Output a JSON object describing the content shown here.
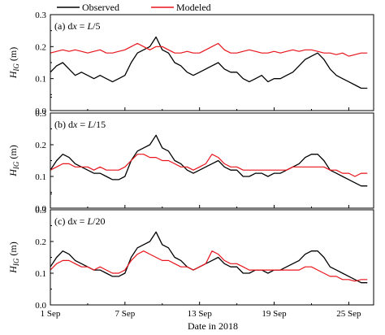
{
  "colors": {
    "observed": "#000000",
    "modeled": "#e8141b",
    "axis": "#000000",
    "background": "#ffffff"
  },
  "legend": {
    "placement": "top, outside plot area",
    "entries": [
      {
        "label": "Observed",
        "color": "#000000"
      },
      {
        "label": "Modeled",
        "color": "#e8141b"
      }
    ]
  },
  "xlabel": "Date in 2018",
  "x_tick_labels": [
    "1 Sep",
    "7 Sep",
    "13 Sep",
    "19 Sep",
    "25 Sep"
  ],
  "y_axis_label": {
    "symbol": "H",
    "subscript": "IG",
    "unit": " (m)"
  },
  "panels": [
    {
      "label_prefix": "(a) d",
      "label_var": "x",
      "label_eq": " = ",
      "label_L": "L",
      "label_suffix": "/5"
    },
    {
      "label_prefix": "(b) d",
      "label_var": "x",
      "label_eq": " = ",
      "label_L": "L",
      "label_suffix": "/15"
    },
    {
      "label_prefix": "(c) d",
      "label_var": "x",
      "label_eq": " = ",
      "label_L": "L",
      "label_suffix": "/20"
    }
  ],
  "chart_data": [
    {
      "type": "line",
      "title": "(a) dx = L/5",
      "xlabel": "",
      "ylabel": "HIG (m)",
      "xlim": [
        1,
        27
      ],
      "ylim": [
        0,
        0.3
      ],
      "y_ticks": [
        0.0,
        0.1,
        0.2,
        0.3
      ],
      "y_tick_labels": [
        "0.0",
        "0.1",
        "0.2",
        "0.3"
      ],
      "series": [
        {
          "name": "Observed",
          "color": "#000000",
          "x": [
            1,
            1.5,
            2,
            2.5,
            3,
            3.5,
            4,
            4.5,
            5,
            5.5,
            6,
            6.5,
            7,
            7.5,
            8,
            8.5,
            9,
            9.5,
            10,
            10.5,
            11,
            11.5,
            12,
            12.5,
            13,
            13.5,
            14,
            14.5,
            15,
            15.5,
            16,
            16.5,
            17,
            17.5,
            18,
            18.5,
            19,
            19.5,
            20,
            20.5,
            21,
            21.5,
            22,
            22.5,
            23,
            23.5,
            24,
            24.5,
            25,
            25.5,
            26,
            26.5
          ],
          "y": [
            0.12,
            0.14,
            0.15,
            0.13,
            0.11,
            0.12,
            0.11,
            0.1,
            0.11,
            0.1,
            0.09,
            0.1,
            0.11,
            0.15,
            0.18,
            0.19,
            0.2,
            0.23,
            0.19,
            0.18,
            0.15,
            0.14,
            0.12,
            0.11,
            0.12,
            0.13,
            0.14,
            0.15,
            0.13,
            0.12,
            0.12,
            0.1,
            0.09,
            0.1,
            0.11,
            0.09,
            0.1,
            0.1,
            0.11,
            0.12,
            0.14,
            0.16,
            0.17,
            0.18,
            0.16,
            0.13,
            0.11,
            0.1,
            0.09,
            0.08,
            0.07,
            0.07
          ]
        },
        {
          "name": "Modeled",
          "color": "#e8141b",
          "x": [
            1,
            1.5,
            2,
            2.5,
            3,
            3.5,
            4,
            4.5,
            5,
            5.5,
            6,
            6.5,
            7,
            7.5,
            8,
            8.5,
            9,
            9.5,
            10,
            10.5,
            11,
            11.5,
            12,
            12.5,
            13,
            13.5,
            14,
            14.5,
            15,
            15.5,
            16,
            16.5,
            17,
            17.5,
            18,
            18.5,
            19,
            19.5,
            20,
            20.5,
            21,
            21.5,
            22,
            22.5,
            23,
            23.5,
            24,
            24.5,
            25,
            25.5,
            26,
            26.5
          ],
          "y": [
            0.18,
            0.185,
            0.19,
            0.185,
            0.19,
            0.185,
            0.18,
            0.185,
            0.19,
            0.18,
            0.18,
            0.185,
            0.19,
            0.2,
            0.21,
            0.2,
            0.19,
            0.2,
            0.2,
            0.19,
            0.18,
            0.18,
            0.185,
            0.18,
            0.18,
            0.19,
            0.2,
            0.21,
            0.19,
            0.18,
            0.18,
            0.185,
            0.19,
            0.185,
            0.18,
            0.18,
            0.185,
            0.18,
            0.185,
            0.19,
            0.185,
            0.19,
            0.19,
            0.185,
            0.18,
            0.18,
            0.175,
            0.18,
            0.17,
            0.175,
            0.18,
            0.18
          ]
        }
      ]
    },
    {
      "type": "line",
      "title": "(b) dx = L/15",
      "xlabel": "",
      "ylabel": "HIG (m)",
      "xlim": [
        1,
        27
      ],
      "ylim": [
        0,
        0.3
      ],
      "y_ticks": [
        0.0,
        0.1,
        0.2,
        0.3
      ],
      "y_tick_labels": [
        "0.0",
        "0.1",
        "0.2",
        "0.3"
      ],
      "series": [
        {
          "name": "Observed",
          "color": "#000000",
          "x": [
            1,
            1.5,
            2,
            2.5,
            3,
            3.5,
            4,
            4.5,
            5,
            5.5,
            6,
            6.5,
            7,
            7.5,
            8,
            8.5,
            9,
            9.5,
            10,
            10.5,
            11,
            11.5,
            12,
            12.5,
            13,
            13.5,
            14,
            14.5,
            15,
            15.5,
            16,
            16.5,
            17,
            17.5,
            18,
            18.5,
            19,
            19.5,
            20,
            20.5,
            21,
            21.5,
            22,
            22.5,
            23,
            23.5,
            24,
            24.5,
            25,
            25.5,
            26,
            26.5
          ],
          "y": [
            0.12,
            0.15,
            0.17,
            0.16,
            0.14,
            0.13,
            0.12,
            0.11,
            0.11,
            0.1,
            0.09,
            0.09,
            0.1,
            0.15,
            0.18,
            0.19,
            0.2,
            0.23,
            0.19,
            0.18,
            0.15,
            0.14,
            0.12,
            0.11,
            0.12,
            0.13,
            0.14,
            0.15,
            0.13,
            0.12,
            0.12,
            0.1,
            0.1,
            0.11,
            0.11,
            0.1,
            0.11,
            0.11,
            0.12,
            0.13,
            0.14,
            0.16,
            0.17,
            0.17,
            0.15,
            0.12,
            0.11,
            0.1,
            0.09,
            0.08,
            0.07,
            0.07
          ]
        },
        {
          "name": "Modeled",
          "color": "#e8141b",
          "x": [
            1,
            1.5,
            2,
            2.5,
            3,
            3.5,
            4,
            4.5,
            5,
            5.5,
            6,
            6.5,
            7,
            7.5,
            8,
            8.5,
            9,
            9.5,
            10,
            10.5,
            11,
            11.5,
            12,
            12.5,
            13,
            13.5,
            14,
            14.5,
            15,
            15.5,
            16,
            16.5,
            17,
            17.5,
            18,
            18.5,
            19,
            19.5,
            20,
            20.5,
            21,
            21.5,
            22,
            22.5,
            23,
            23.5,
            24,
            24.5,
            25,
            25.5,
            26,
            26.5
          ],
          "y": [
            0.12,
            0.13,
            0.14,
            0.14,
            0.13,
            0.13,
            0.13,
            0.12,
            0.13,
            0.12,
            0.12,
            0.12,
            0.13,
            0.15,
            0.17,
            0.17,
            0.16,
            0.16,
            0.15,
            0.15,
            0.14,
            0.13,
            0.13,
            0.12,
            0.13,
            0.14,
            0.17,
            0.16,
            0.14,
            0.13,
            0.13,
            0.12,
            0.12,
            0.12,
            0.12,
            0.12,
            0.12,
            0.12,
            0.12,
            0.13,
            0.13,
            0.13,
            0.13,
            0.13,
            0.13,
            0.12,
            0.12,
            0.11,
            0.11,
            0.1,
            0.11,
            0.11
          ]
        }
      ]
    },
    {
      "type": "line",
      "title": "(c) dx = L/20",
      "xlabel": "Date in 2018",
      "ylabel": "HIG (m)",
      "xlim": [
        1,
        27
      ],
      "ylim": [
        0,
        0.3
      ],
      "y_ticks": [
        0.0,
        0.1,
        0.2,
        0.3
      ],
      "y_tick_labels": [
        "0.0",
        "0.1",
        "0.2",
        "0.3"
      ],
      "x_ticks": [
        1,
        7,
        13,
        19,
        25
      ],
      "x_tick_labels": [
        "1 Sep",
        "7 Sep",
        "13 Sep",
        "19 Sep",
        "25 Sep"
      ],
      "series": [
        {
          "name": "Observed",
          "color": "#000000",
          "x": [
            1,
            1.5,
            2,
            2.5,
            3,
            3.5,
            4,
            4.5,
            5,
            5.5,
            6,
            6.5,
            7,
            7.5,
            8,
            8.5,
            9,
            9.5,
            10,
            10.5,
            11,
            11.5,
            12,
            12.5,
            13,
            13.5,
            14,
            14.5,
            15,
            15.5,
            16,
            16.5,
            17,
            17.5,
            18,
            18.5,
            19,
            19.5,
            20,
            20.5,
            21,
            21.5,
            22,
            22.5,
            23,
            23.5,
            24,
            24.5,
            25,
            25.5,
            26,
            26.5
          ],
          "y": [
            0.12,
            0.15,
            0.17,
            0.16,
            0.14,
            0.13,
            0.12,
            0.11,
            0.11,
            0.1,
            0.09,
            0.09,
            0.1,
            0.15,
            0.18,
            0.19,
            0.2,
            0.23,
            0.19,
            0.18,
            0.15,
            0.14,
            0.12,
            0.11,
            0.12,
            0.13,
            0.14,
            0.15,
            0.13,
            0.12,
            0.12,
            0.1,
            0.1,
            0.11,
            0.11,
            0.1,
            0.11,
            0.11,
            0.12,
            0.13,
            0.14,
            0.16,
            0.17,
            0.17,
            0.15,
            0.12,
            0.11,
            0.1,
            0.09,
            0.08,
            0.07,
            0.07
          ]
        },
        {
          "name": "Modeled",
          "color": "#e8141b",
          "x": [
            1,
            1.5,
            2,
            2.5,
            3,
            3.5,
            4,
            4.5,
            5,
            5.5,
            6,
            6.5,
            7,
            7.5,
            8,
            8.5,
            9,
            9.5,
            10,
            10.5,
            11,
            11.5,
            12,
            12.5,
            13,
            13.5,
            14,
            14.5,
            15,
            15.5,
            16,
            16.5,
            17,
            17.5,
            18,
            18.5,
            19,
            19.5,
            20,
            20.5,
            21,
            21.5,
            22,
            22.5,
            23,
            23.5,
            24,
            24.5,
            25,
            25.5,
            26,
            26.5
          ],
          "y": [
            0.11,
            0.13,
            0.14,
            0.14,
            0.13,
            0.12,
            0.12,
            0.11,
            0.12,
            0.11,
            0.1,
            0.1,
            0.11,
            0.14,
            0.16,
            0.17,
            0.16,
            0.15,
            0.14,
            0.14,
            0.13,
            0.12,
            0.12,
            0.11,
            0.12,
            0.13,
            0.17,
            0.16,
            0.14,
            0.13,
            0.13,
            0.12,
            0.11,
            0.11,
            0.11,
            0.11,
            0.11,
            0.11,
            0.11,
            0.11,
            0.11,
            0.12,
            0.12,
            0.11,
            0.1,
            0.09,
            0.09,
            0.08,
            0.08,
            0.075,
            0.08,
            0.08
          ]
        }
      ]
    }
  ]
}
